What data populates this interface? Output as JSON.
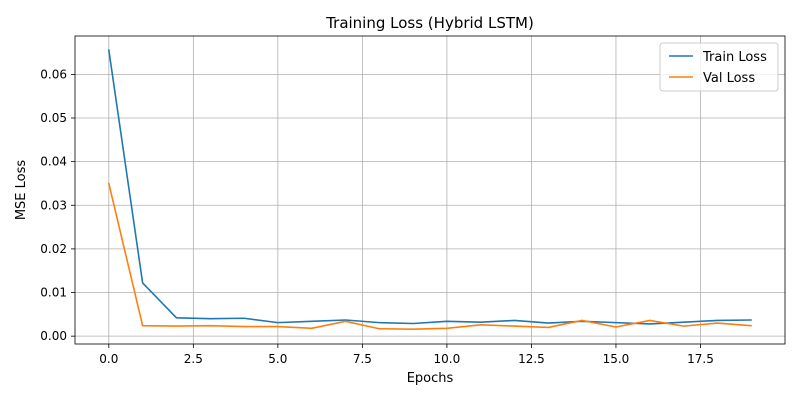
{
  "chart_data": {
    "type": "line",
    "title": "Training Loss (Hybrid LSTM)",
    "xlabel": "Epochs",
    "ylabel": "MSE Loss",
    "xlim": [
      -1.0,
      20.0
    ],
    "ylim": [
      -0.0018,
      0.0688
    ],
    "xticks": [
      0.0,
      2.5,
      5.0,
      7.5,
      10.0,
      12.5,
      15.0,
      17.5
    ],
    "xtick_labels": [
      "0.0",
      "2.5",
      "5.0",
      "7.5",
      "10.0",
      "12.5",
      "15.0",
      "17.5"
    ],
    "yticks": [
      0.0,
      0.01,
      0.02,
      0.03,
      0.04,
      0.05,
      0.06
    ],
    "ytick_labels": [
      "0.00",
      "0.01",
      "0.02",
      "0.03",
      "0.04",
      "0.05",
      "0.06"
    ],
    "grid": true,
    "legend_position": "top-right",
    "x": [
      0,
      1,
      2,
      3,
      4,
      5,
      6,
      7,
      8,
      9,
      10,
      11,
      12,
      13,
      14,
      15,
      16,
      17,
      18,
      19
    ],
    "series": [
      {
        "name": "Train Loss",
        "color": "#1f77b4",
        "values": [
          0.0656,
          0.0122,
          0.0042,
          0.004,
          0.0041,
          0.0031,
          0.0034,
          0.0037,
          0.0031,
          0.0029,
          0.0034,
          0.0032,
          0.0036,
          0.003,
          0.0034,
          0.0031,
          0.0028,
          0.0032,
          0.0036,
          0.0037
        ]
      },
      {
        "name": "Val Loss",
        "color": "#ff7f0e",
        "values": [
          0.035,
          0.0024,
          0.0023,
          0.0024,
          0.0022,
          0.0022,
          0.0018,
          0.0034,
          0.0017,
          0.0016,
          0.0018,
          0.0026,
          0.0023,
          0.002,
          0.0036,
          0.0021,
          0.0036,
          0.0023,
          0.003,
          0.0024
        ]
      }
    ]
  }
}
